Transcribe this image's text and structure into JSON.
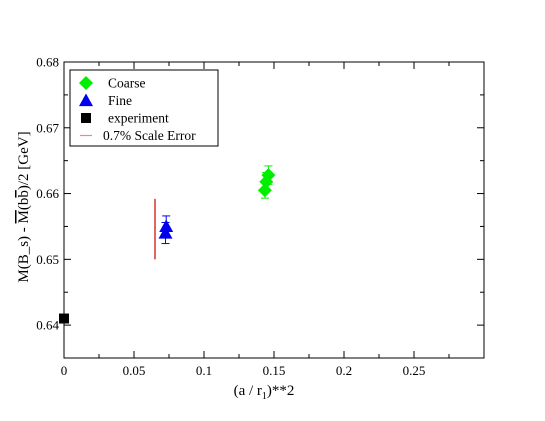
{
  "chart_data": {
    "type": "scatter",
    "title": "",
    "xlabel_parts": {
      "before": "(a / r",
      "sub": "1",
      "after": ")**2"
    },
    "ylabel_parts": {
      "before": "M(B_s) - ",
      "over": "M",
      "mid": "(b",
      "over2": "b",
      "after": ")/2 [GeV]"
    },
    "xlim": [
      0,
      0.3
    ],
    "ylim": [
      0.635,
      0.68
    ],
    "xticks": [
      0,
      0.05,
      0.1,
      0.15,
      0.2,
      0.25
    ],
    "xtick_labels": [
      "0",
      "0.05",
      "0.1",
      "0.15",
      "0.2",
      "0.25"
    ],
    "yticks": [
      0.64,
      0.65,
      0.66,
      0.67,
      0.68
    ],
    "ytick_labels": [
      "0.64",
      "0.65",
      "0.66",
      "0.67",
      "0.68"
    ],
    "grid": false,
    "legend_position": "top-left",
    "series": [
      {
        "name": "Coarse",
        "marker": "diamond",
        "color": "#00ee00",
        "points": [
          {
            "x": 0.1435,
            "y": 0.6605,
            "err": 0.0012
          },
          {
            "x": 0.1445,
            "y": 0.6618,
            "err": 0.0014
          },
          {
            "x": 0.146,
            "y": 0.6628,
            "err": 0.0014
          }
        ]
      },
      {
        "name": "Fine",
        "marker": "triangle",
        "color": "#0000ee",
        "points": [
          {
            "x": 0.0725,
            "y": 0.654,
            "err": 0.0016
          },
          {
            "x": 0.073,
            "y": 0.655,
            "err": 0.0016
          }
        ]
      },
      {
        "name": "experiment",
        "marker": "square",
        "color": "#000000",
        "points": [
          {
            "x": 0.0,
            "y": 0.641,
            "err": 0
          }
        ]
      },
      {
        "name": "0.7% Scale Error",
        "marker": "line",
        "color": "#cc0000",
        "legend_color": "#ff8080",
        "segment": {
          "x": 0.065,
          "y1": 0.65,
          "y2": 0.6592
        }
      }
    ]
  }
}
